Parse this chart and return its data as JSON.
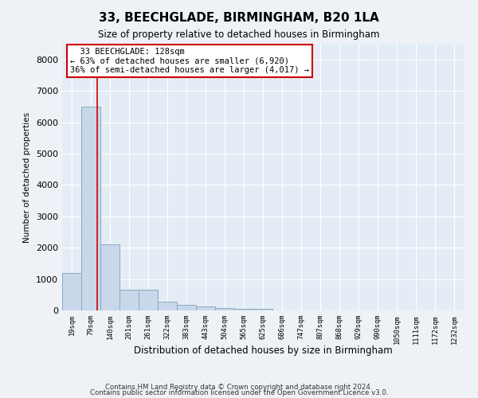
{
  "title": "33, BEECHGLADE, BIRMINGHAM, B20 1LA",
  "subtitle": "Size of property relative to detached houses in Birmingham",
  "xlabel": "Distribution of detached houses by size in Birmingham",
  "ylabel": "Number of detached properties",
  "property_label": "33 BEECHGLADE: 128sqm",
  "pct_smaller": "63% of detached houses are smaller (6,920)",
  "pct_larger": "36% of semi-detached houses are larger (4,017)",
  "bar_color": "#c8d8ea",
  "bar_edge_color": "#8aaabf",
  "vline_color": "#cc0000",
  "annotation_box_edge": "#cc0000",
  "bin_labels": [
    "19sqm",
    "79sqm",
    "140sqm",
    "201sqm",
    "261sqm",
    "322sqm",
    "383sqm",
    "443sqm",
    "504sqm",
    "565sqm",
    "625sqm",
    "686sqm",
    "747sqm",
    "807sqm",
    "868sqm",
    "929sqm",
    "990sqm",
    "1050sqm",
    "1111sqm",
    "1172sqm",
    "1232sqm"
  ],
  "values": [
    1200,
    6500,
    2100,
    650,
    650,
    290,
    165,
    120,
    80,
    60,
    50,
    0,
    0,
    0,
    0,
    0,
    0,
    0,
    0,
    0,
    0
  ],
  "vline_position": 1.82,
  "ylim": [
    0,
    8500
  ],
  "yticks": [
    0,
    1000,
    2000,
    3000,
    4000,
    5000,
    6000,
    7000,
    8000
  ],
  "footer1": "Contains HM Land Registry data © Crown copyright and database right 2024.",
  "footer2": "Contains public sector information licensed under the Open Government Licence v3.0.",
  "bg_color": "#eef2f7",
  "plot_bg_color": "#e4ecf5",
  "grid_color": "#ffffff"
}
